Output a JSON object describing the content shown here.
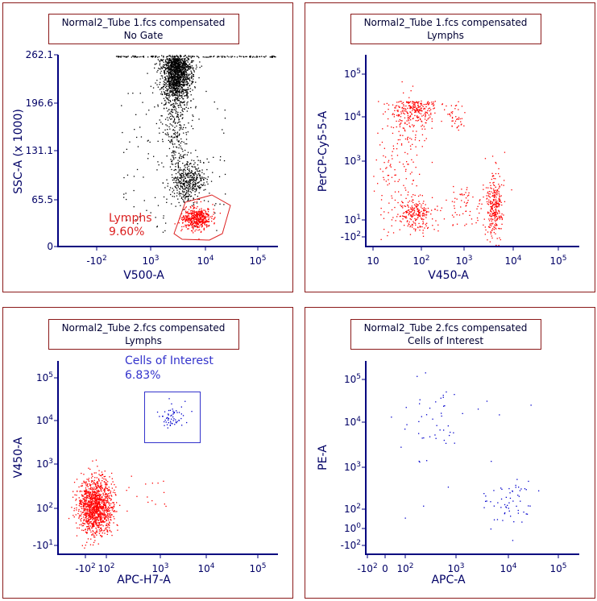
{
  "chart_data": [
    {
      "type": "scatter",
      "title": "Normal2_Tube 1.fcs compensated",
      "subtitle": "No Gate",
      "xlabel": "V500-A",
      "ylabel": "SSC-A (x 1000)",
      "x_scale": "biexponential",
      "y_scale": "linear",
      "ylim": [
        0,
        262.1
      ],
      "x_ticks": [
        "-10^2",
        "10^3",
        "10^4",
        "10^5"
      ],
      "y_ticks": [
        "0",
        "65.5",
        "131.1",
        "196.6",
        "262.1"
      ],
      "series": [
        {
          "color": "#000000",
          "x_range": [
            1500,
            15000
          ],
          "y_range": [
            60,
            262
          ],
          "approx_points": 2600
        },
        {
          "color": "#ff0000",
          "x_range": [
            2500,
            12000
          ],
          "y_range": [
            15,
            55
          ],
          "approx_points": 450
        }
      ],
      "gate": {
        "name": "Lymphs",
        "percent": "9.60%",
        "color": "#dd0000"
      }
    },
    {
      "type": "scatter",
      "title": "Normal2_Tube 1.fcs compensated",
      "subtitle": "Lymphs",
      "xlabel": "V450-A",
      "ylabel": "PerCP-Cy5-5-A",
      "x_scale": "biexponential",
      "y_scale": "biexponential",
      "x_ticks": [
        "10",
        "10^2",
        "10^3",
        "10^4",
        "10^5"
      ],
      "y_ticks": [
        "-10^2",
        "10^1",
        "10^3",
        "10^4",
        "10^5"
      ],
      "series": [
        {
          "color": "#ff0000",
          "clusters": [
            {
              "x": 100,
              "y": 20000
            },
            {
              "x": 100,
              "y": 5
            },
            {
              "x": 4000,
              "y": 5
            }
          ],
          "approx_points": 900
        }
      ]
    },
    {
      "type": "scatter",
      "title": "Normal2_Tube 2.fcs compensated",
      "subtitle": "Lymphs",
      "xlabel": "APC-H7-A",
      "ylabel": "V450-A",
      "x_scale": "biexponential",
      "y_scale": "biexponential",
      "x_ticks": [
        "-10^2",
        "10^2",
        "10^3",
        "10^4",
        "10^5"
      ],
      "y_ticks": [
        "-10^1",
        "10^2",
        "10^3",
        "10^4",
        "10^5"
      ],
      "series": [
        {
          "color": "#ff0000",
          "cluster": {
            "x": 10,
            "y": 100
          },
          "approx_points": 1200
        },
        {
          "color": "#0000cc",
          "cluster": {
            "x": 2000,
            "y": 10000
          },
          "approx_points": 60
        }
      ],
      "gate": {
        "name": "Cells of Interest",
        "percent": "6.83%",
        "color": "#0000cc"
      }
    },
    {
      "type": "scatter",
      "title": "Normal2_Tube 2.fcs compensated",
      "subtitle": "Cells of Interest",
      "xlabel": "APC-A",
      "ylabel": "PE-A",
      "x_scale": "biexponential",
      "y_scale": "biexponential",
      "x_ticks": [
        "-10^2",
        "0",
        "10^2",
        "10^3",
        "10^4",
        "10^5"
      ],
      "y_ticks": [
        "-10^2",
        "10^0",
        "10^2",
        "10^3",
        "10^4",
        "10^5"
      ],
      "series": [
        {
          "color": "#0000cc",
          "clusters": [
            {
              "x": 300,
              "y": 10000
            },
            {
              "x": 12000,
              "y": 100
            }
          ],
          "approx_points": 110
        }
      ]
    }
  ]
}
